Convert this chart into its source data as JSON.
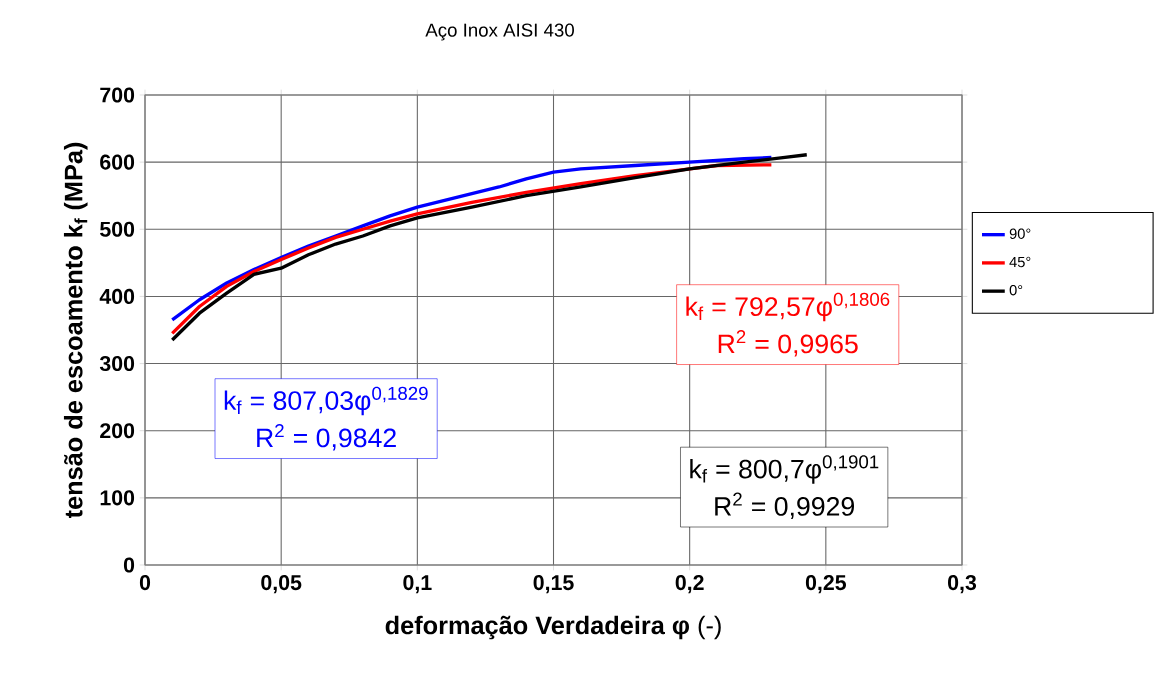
{
  "chart_data": {
    "type": "line",
    "title": "Aço Inox AISI 430",
    "xlabel": "**deformação Verdadeira φ** (-)",
    "ylabel": "tensão de escoamento k$_{f}$ (MPa)",
    "xlim": [
      0,
      0.3
    ],
    "ylim": [
      0,
      700
    ],
    "xticks": [
      0,
      {
        "value": 0.05,
        "label": "0,05"
      },
      {
        "value": 0.1,
        "label": "0,1"
      },
      {
        "value": 0.15,
        "label": "0,15"
      },
      {
        "value": 0.2,
        "label": "0,2"
      },
      {
        "value": 0.25,
        "label": "0,25"
      },
      {
        "value": 0.3,
        "label": "0,3"
      }
    ],
    "yticks": [
      0,
      100,
      200,
      300,
      400,
      500,
      600,
      700
    ],
    "grid": true,
    "legend": "right",
    "series": [
      {
        "name": "90°",
        "color": "#0000ff",
        "x": [
          0.01,
          0.02,
          0.03,
          0.04,
          0.05,
          0.06,
          0.07,
          0.08,
          0.09,
          0.1,
          0.11,
          0.12,
          0.13,
          0.14,
          0.15,
          0.16,
          0.18,
          0.2,
          0.22,
          0.23
        ],
        "values": [
          365,
          395,
          420,
          440,
          458,
          475,
          490,
          505,
          520,
          533,
          543,
          553,
          563,
          575,
          585,
          590,
          595,
          600,
          605,
          607
        ]
      },
      {
        "name": "45°",
        "color": "#ff0000",
        "x": [
          0.01,
          0.02,
          0.03,
          0.04,
          0.05,
          0.06,
          0.07,
          0.08,
          0.09,
          0.1,
          0.12,
          0.14,
          0.16,
          0.18,
          0.2,
          0.21,
          0.23
        ],
        "values": [
          345,
          385,
          415,
          437,
          455,
          472,
          488,
          500,
          512,
          523,
          540,
          555,
          568,
          580,
          590,
          595,
          596
        ]
      },
      {
        "name": "0°",
        "color": "#000000",
        "x": [
          0.01,
          0.02,
          0.03,
          0.04,
          0.05,
          0.06,
          0.07,
          0.08,
          0.09,
          0.1,
          0.12,
          0.14,
          0.16,
          0.18,
          0.2,
          0.22,
          0.235,
          0.243
        ],
        "values": [
          335,
          375,
          405,
          433,
          442,
          462,
          478,
          490,
          505,
          517,
          533,
          550,
          563,
          577,
          590,
          600,
          607,
          611
        ]
      }
    ],
    "annotations": [
      "k$_{f}$ = 807,03φ$^{0,1829}$",
      "R$^{2}$ = 0,9842",
      "k$_{f}$ = 792,57φ$^{0,1806}$",
      "R$^{2}$ = 0,9965",
      "k$_{f}$ = 800,7φ$^{0,1901}$",
      "R$^{2}$ = 0,9929"
    ]
  }
}
